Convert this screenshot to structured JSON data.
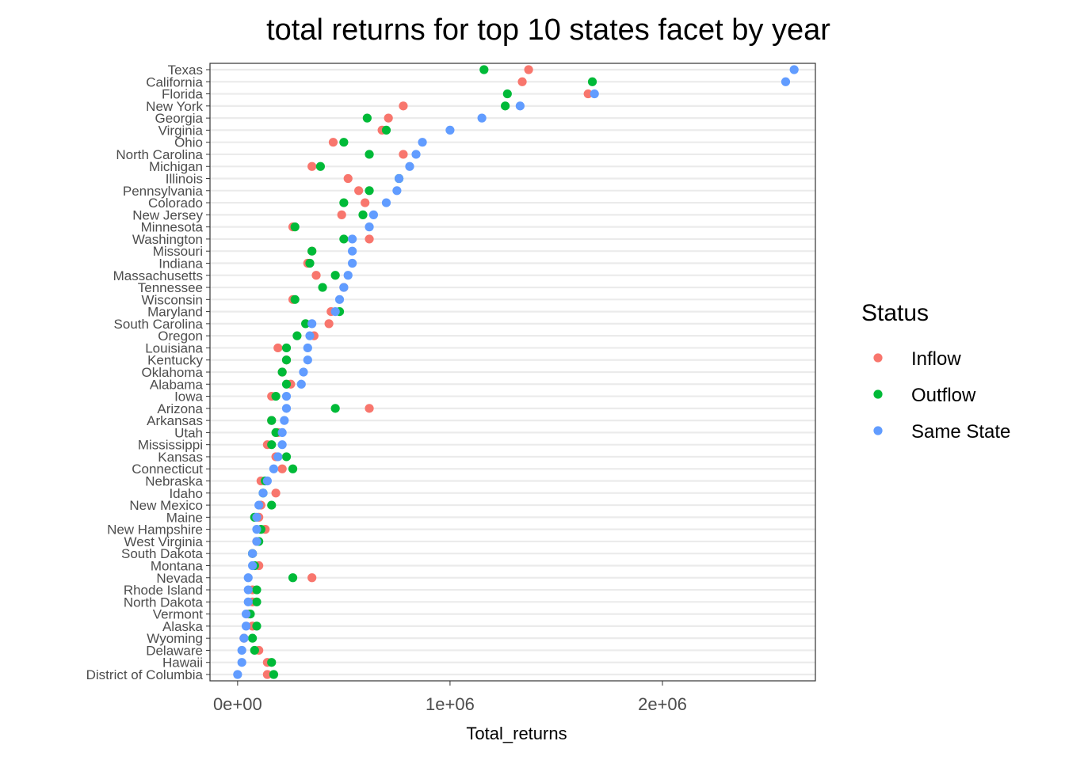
{
  "chart_data": {
    "type": "scatter",
    "title": "total returns for top 10 states facet by year",
    "xlabel": "Total_returns",
    "ylabel": "",
    "xlim": [
      -130000,
      2720000
    ],
    "x_ticks": [
      0,
      1000000,
      2000000
    ],
    "x_tick_labels": [
      "0e+00",
      "1e+06",
      "2e+06"
    ],
    "grid": "horizontal",
    "legend": {
      "title": "Status",
      "position": "right"
    },
    "categories": [
      "Texas",
      "California",
      "Florida",
      "New York",
      "Georgia",
      "Virginia",
      "Ohio",
      "North Carolina",
      "Michigan",
      "Illinois",
      "Pennsylvania",
      "Colorado",
      "New Jersey",
      "Minnesota",
      "Washington",
      "Missouri",
      "Indiana",
      "Massachusetts",
      "Tennessee",
      "Wisconsin",
      "Maryland",
      "South Carolina",
      "Oregon",
      "Louisiana",
      "Kentucky",
      "Oklahoma",
      "Alabama",
      "Iowa",
      "Arizona",
      "Arkansas",
      "Utah",
      "Mississippi",
      "Kansas",
      "Connecticut",
      "Nebraska",
      "Idaho",
      "New Mexico",
      "Maine",
      "New Hampshire",
      "West Virginia",
      "South Dakota",
      "Montana",
      "Nevada",
      "Rhode Island",
      "North Dakota",
      "Vermont",
      "Alaska",
      "Wyoming",
      "Delaware",
      "Hawaii",
      "District of Columbia"
    ],
    "series": [
      {
        "name": "Inflow",
        "color": "#F8766D",
        "values": [
          1370000,
          1340000,
          1650000,
          780000,
          710000,
          680000,
          450000,
          780000,
          350000,
          520000,
          570000,
          600000,
          490000,
          260000,
          620000,
          350000,
          330000,
          370000,
          500000,
          260000,
          440000,
          430000,
          360000,
          190000,
          230000,
          210000,
          250000,
          160000,
          620000,
          160000,
          190000,
          140000,
          180000,
          210000,
          110000,
          180000,
          110000,
          100000,
          130000,
          90000,
          70000,
          100000,
          350000,
          70000,
          70000,
          50000,
          70000,
          30000,
          100000,
          140000,
          140000
        ]
      },
      {
        "name": "Outflow",
        "color": "#00BA38",
        "values": [
          1160000,
          1670000,
          1270000,
          1260000,
          610000,
          700000,
          500000,
          620000,
          390000,
          760000,
          620000,
          500000,
          590000,
          270000,
          500000,
          350000,
          340000,
          460000,
          400000,
          270000,
          480000,
          320000,
          280000,
          230000,
          230000,
          210000,
          230000,
          180000,
          460000,
          160000,
          180000,
          160000,
          230000,
          260000,
          130000,
          120000,
          160000,
          80000,
          110000,
          100000,
          70000,
          80000,
          260000,
          90000,
          90000,
          60000,
          90000,
          70000,
          80000,
          160000,
          170000
        ]
      },
      {
        "name": "Same State",
        "color": "#619CFF",
        "values": [
          2620000,
          2580000,
          1680000,
          1330000,
          1150000,
          1000000,
          870000,
          840000,
          810000,
          760000,
          750000,
          700000,
          640000,
          620000,
          540000,
          540000,
          540000,
          520000,
          500000,
          480000,
          460000,
          350000,
          340000,
          330000,
          330000,
          310000,
          300000,
          230000,
          230000,
          220000,
          210000,
          210000,
          190000,
          170000,
          140000,
          120000,
          100000,
          90000,
          90000,
          90000,
          70000,
          70000,
          50000,
          50000,
          50000,
          40000,
          40000,
          30000,
          20000,
          20000,
          0
        ]
      }
    ]
  }
}
